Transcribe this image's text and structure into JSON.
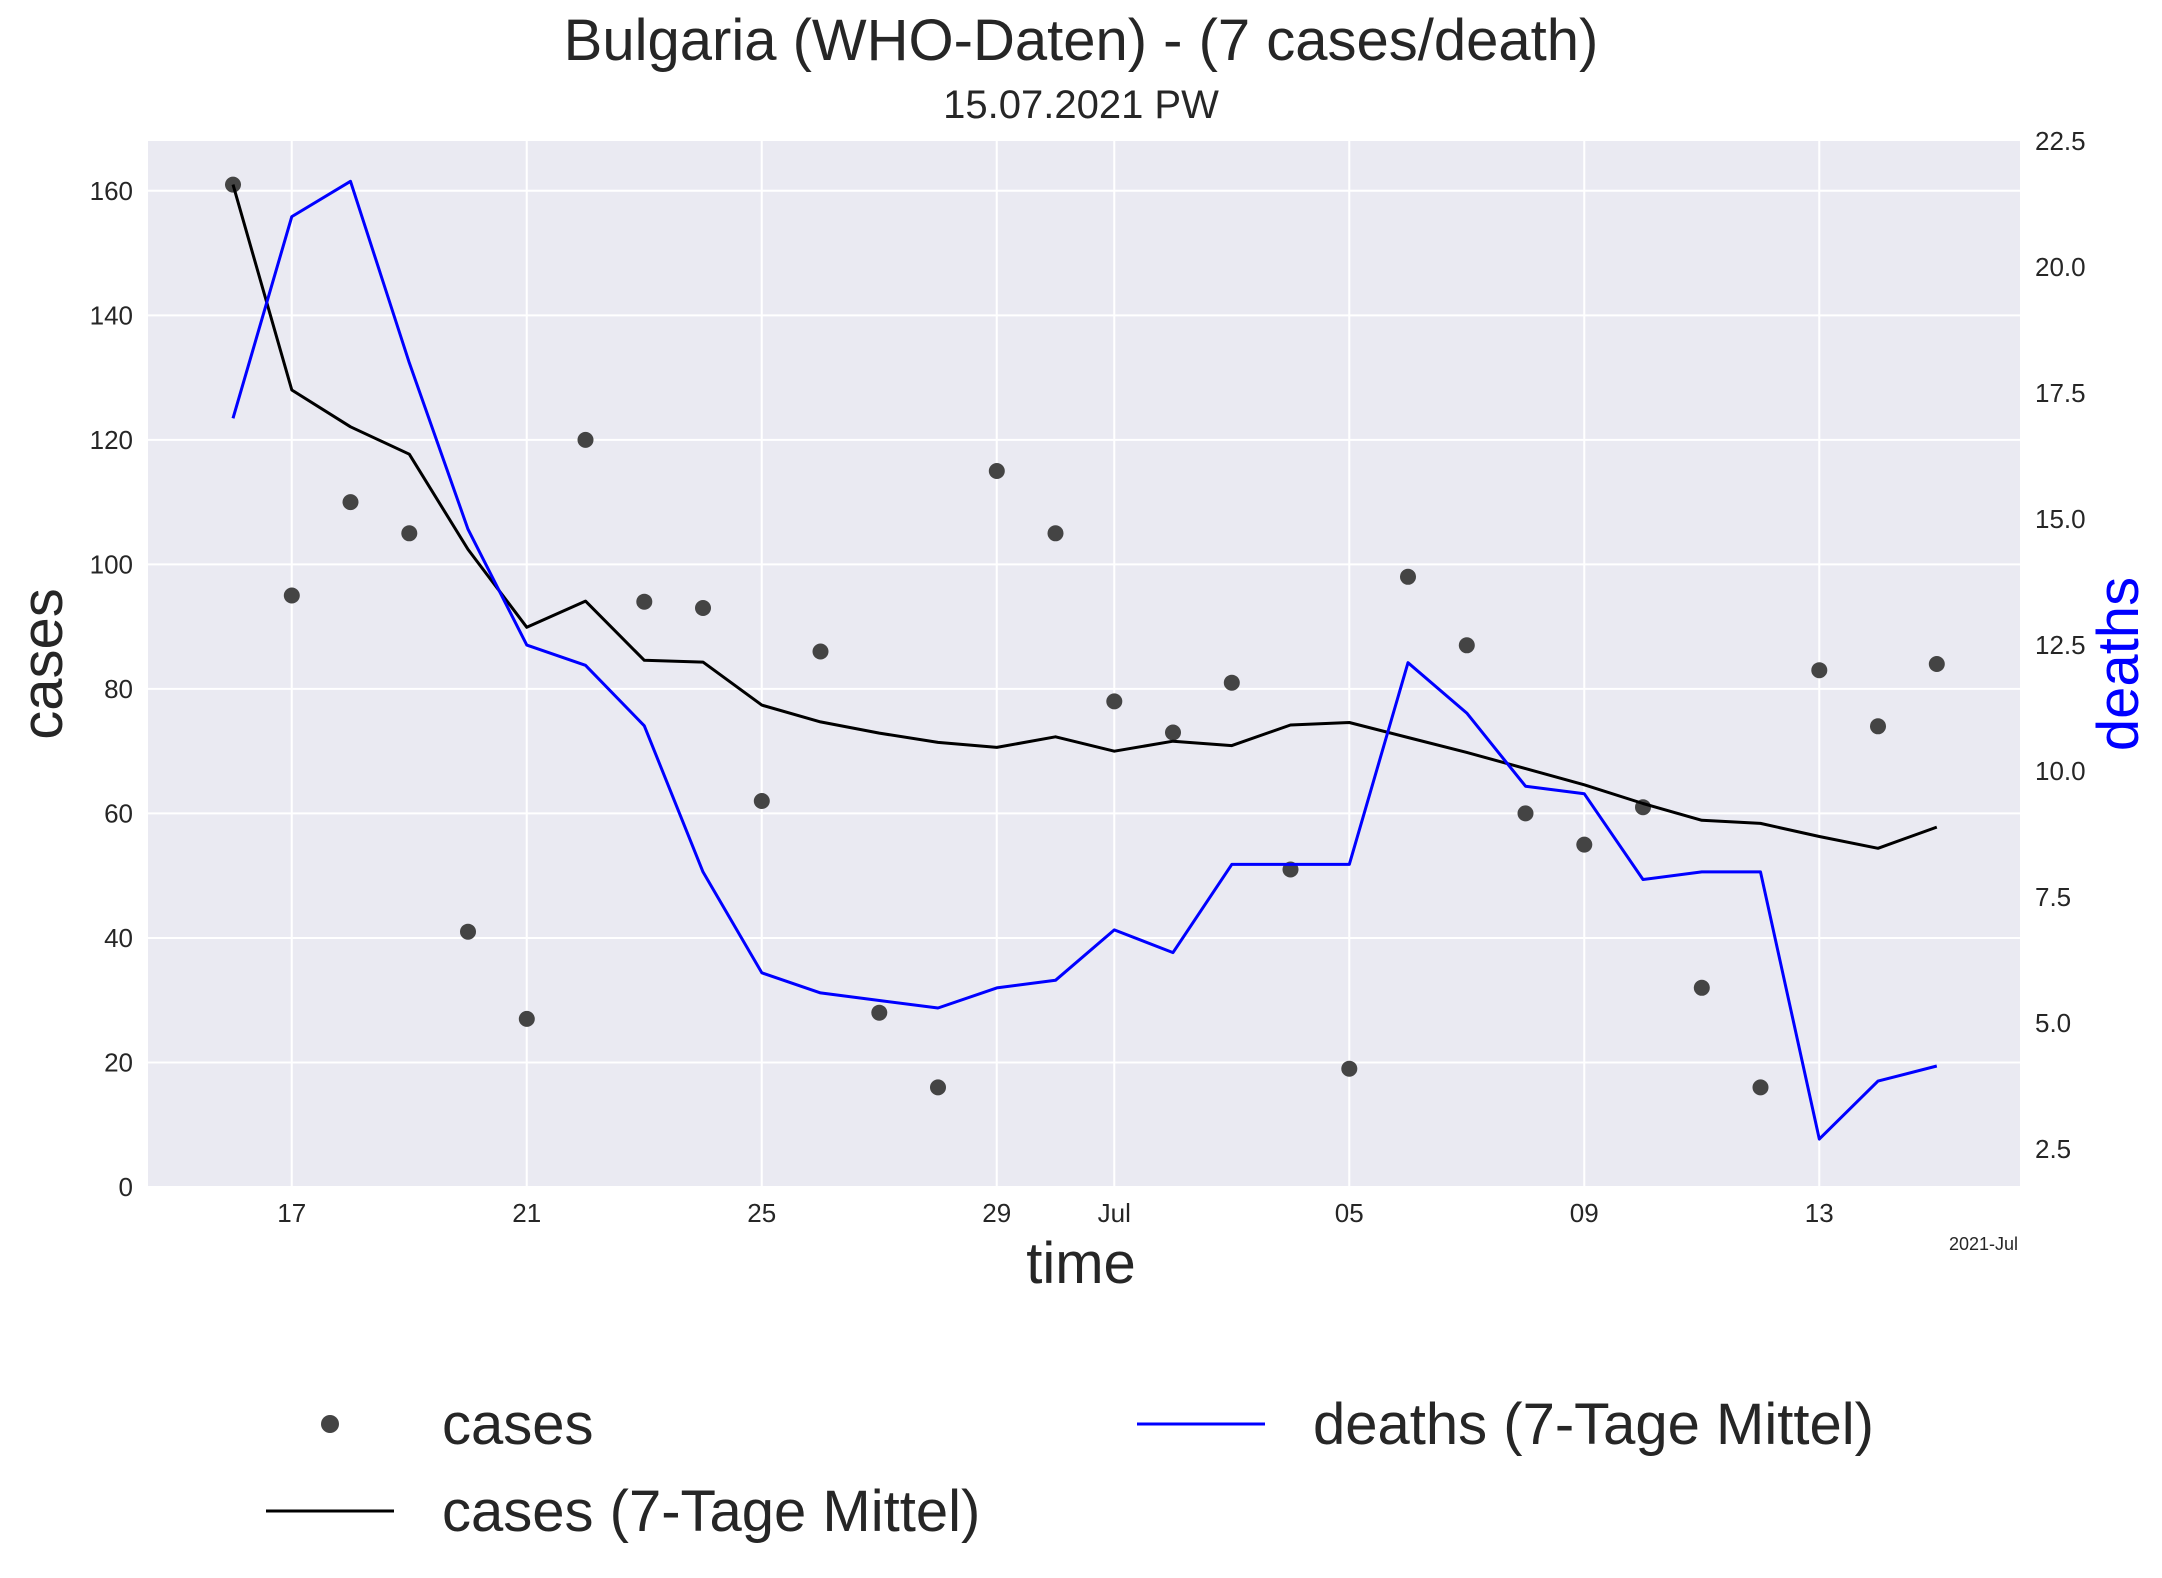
{
  "chart_data": {
    "type": "line",
    "title": "Bulgaria (WHO-Daten) - (7 cases/death)",
    "subtitle": "15.07.2021 PW",
    "xlabel": "time",
    "ylabel": "cases",
    "y2label": "deaths",
    "x_offset_label": "2021-Jul",
    "x_tick_labels": [
      "17",
      "21",
      "25",
      "29",
      "Jul",
      "05",
      "09",
      "13"
    ],
    "ylim": [
      0,
      168
    ],
    "y_ticks": [
      0,
      20,
      40,
      60,
      80,
      100,
      120,
      140,
      160
    ],
    "y2lim": [
      1.75,
      22.5
    ],
    "y2_ticks": [
      "2.5",
      "5.0",
      "7.5",
      "10.0",
      "12.5",
      "15.0",
      "17.5",
      "20.0",
      "22.5"
    ],
    "grid": true,
    "legend_position": "bottom",
    "dates": [
      "2021-06-16",
      "2021-06-17",
      "2021-06-18",
      "2021-06-19",
      "2021-06-20",
      "2021-06-21",
      "2021-06-22",
      "2021-06-23",
      "2021-06-24",
      "2021-06-25",
      "2021-06-26",
      "2021-06-27",
      "2021-06-28",
      "2021-06-29",
      "2021-06-30",
      "2021-07-01",
      "2021-07-02",
      "2021-07-03",
      "2021-07-04",
      "2021-07-05",
      "2021-07-06",
      "2021-07-07",
      "2021-07-08",
      "2021-07-09",
      "2021-07-10",
      "2021-07-11",
      "2021-07-12",
      "2021-07-13",
      "2021-07-14",
      "2021-07-15"
    ],
    "series": [
      {
        "name": "cases",
        "kind": "scatter",
        "axis": "left",
        "color": "#444444",
        "values": [
          161,
          95,
          110,
          105,
          41,
          27,
          120,
          94,
          93,
          62,
          86,
          28,
          16,
          115,
          105,
          78,
          73,
          81,
          51,
          19,
          98,
          87,
          60,
          55,
          61,
          32,
          16,
          83,
          74,
          84
        ]
      },
      {
        "name": "cases (7-Tage Mittel)",
        "kind": "line",
        "axis": "left",
        "color": "#000000",
        "values": [
          161,
          128,
          122.1,
          117.7,
          102.4,
          89.9,
          94.1,
          84.6,
          84.3,
          77.4,
          74.7,
          72.9,
          71.4,
          70.6,
          72.3,
          70.0,
          71.6,
          70.9,
          74.2,
          74.6,
          72.2,
          69.8,
          67.2,
          64.6,
          61.6,
          58.9,
          58.4,
          56.3,
          54.4,
          57.8
        ]
      },
      {
        "name": "deaths (7-Tage Mittel)",
        "kind": "line",
        "axis": "right",
        "color": "#0000ff",
        "values": [
          17.0,
          21.0,
          21.7,
          18.1,
          14.8,
          12.5,
          12.1,
          10.9,
          8.0,
          6.0,
          5.6,
          5.45,
          5.3,
          5.7,
          5.85,
          6.85,
          6.4,
          8.15,
          8.15,
          8.15,
          12.15,
          11.15,
          9.7,
          9.55,
          7.85,
          8.0,
          8.0,
          2.7,
          3.85,
          4.15
        ]
      }
    ]
  }
}
